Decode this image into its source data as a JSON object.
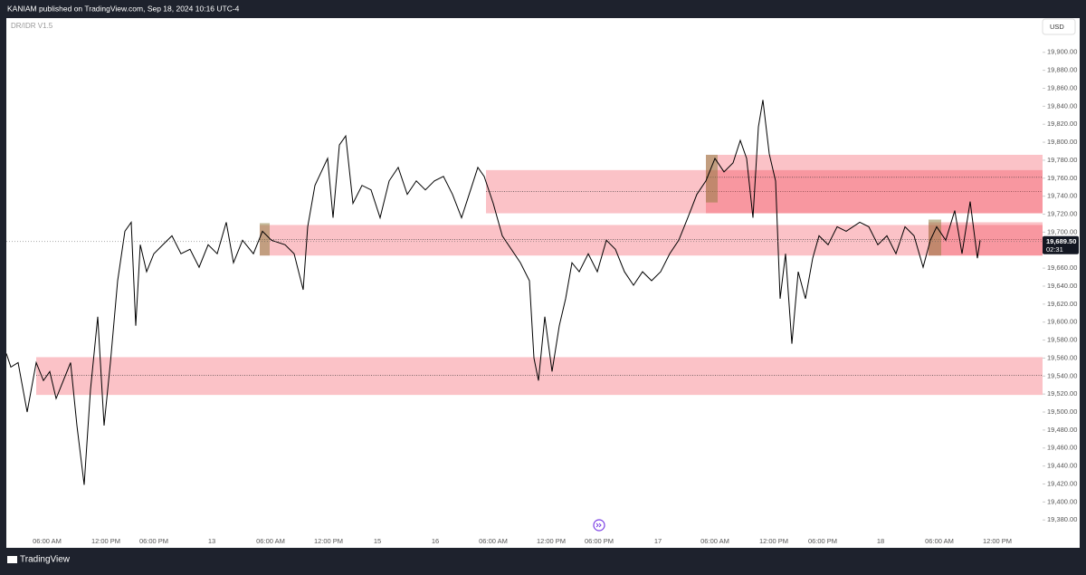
{
  "header": "KANIAM published on TradingView.com, Sep 18, 2024 10:16 UTC-4",
  "indicator": "DR/IDR V1.5",
  "currency": "USD",
  "footer": "TradingView",
  "chart_data": {
    "type": "line",
    "color": "#000000",
    "x": [
      0,
      5,
      13,
      23,
      33,
      41,
      48,
      55,
      63,
      71,
      78,
      86,
      93,
      101,
      108,
      115,
      123,
      131,
      138,
      143,
      148,
      155,
      163,
      173,
      183,
      193,
      203,
      213,
      223,
      233,
      243,
      251,
      261,
      273,
      283,
      293,
      308,
      318,
      328,
      333,
      341,
      348,
      355,
      361,
      368,
      375,
      383,
      393,
      403,
      413,
      423,
      433,
      443,
      453,
      463,
      473,
      483,
      493,
      503,
      513,
      521,
      528,
      538,
      548,
      558,
      568,
      578,
      583,
      588,
      595,
      603,
      611,
      618,
      625,
      633,
      643,
      653,
      663,
      673,
      683,
      693,
      703,
      713,
      723,
      733,
      743,
      753,
      763,
      773,
      783,
      793,
      803,
      811,
      818,
      825,
      831,
      836,
      843,
      850,
      855,
      861,
      868,
      875,
      883,
      891,
      898,
      908,
      918,
      928,
      943,
      953,
      963,
      973,
      983,
      993,
      1003,
      1013,
      1021,
      1028,
      1038,
      1048,
      1056,
      1065,
      1073,
      1076
    ],
    "values": [
      19565,
      19550,
      19555,
      19500,
      19555,
      19535,
      19545,
      19515,
      19535,
      19555,
      19485,
      19419,
      19525,
      19606,
      19485,
      19555,
      19646,
      19701,
      19711,
      19596,
      19686,
      19656,
      19676,
      19686,
      19696,
      19676,
      19681,
      19661,
      19686,
      19676,
      19711,
      19666,
      19691,
      19676,
      19701,
      19691,
      19686,
      19676,
      19636,
      19706,
      19752,
      19767,
      19782,
      19716,
      19797,
      19807,
      19732,
      19752,
      19747,
      19716,
      19757,
      19772,
      19742,
      19757,
      19747,
      19757,
      19762,
      19742,
      19716,
      19747,
      19772,
      19762,
      19732,
      19696,
      19681,
      19666,
      19646,
      19560,
      19535,
      19606,
      19545,
      19596,
      19626,
      19666,
      19656,
      19676,
      19656,
      19691,
      19681,
      19656,
      19641,
      19656,
      19646,
      19656,
      19676,
      19691,
      19716,
      19742,
      19757,
      19782,
      19767,
      19777,
      19802,
      19782,
      19716,
      19817,
      19847,
      19787,
      19757,
      19626,
      19676,
      19576,
      19656,
      19626,
      19671,
      19696,
      19686,
      19706,
      19701,
      19711,
      19706,
      19686,
      19696,
      19676,
      19706,
      19696,
      19661,
      19691,
      19706,
      19691,
      19724,
      19676,
      19734,
      19671,
      19691
    ],
    "xlim": [
      0,
      1145
    ],
    "xticks": [
      {
        "value": 45,
        "label": "06:00 AM"
      },
      {
        "value": 110,
        "label": "12:00 PM"
      },
      {
        "value": 163,
        "label": "06:00 PM"
      },
      {
        "value": 227,
        "label": "13"
      },
      {
        "value": 292,
        "label": "06:00 AM"
      },
      {
        "value": 356,
        "label": "12:00 PM"
      },
      {
        "value": 410,
        "label": "15"
      },
      {
        "value": 474,
        "label": "16"
      },
      {
        "value": 538,
        "label": "06:00 AM"
      },
      {
        "value": 602,
        "label": "12:00 PM"
      },
      {
        "value": 655,
        "label": "06:00 PM"
      },
      {
        "value": 720,
        "label": "17"
      },
      {
        "value": 783,
        "label": "06:00 AM"
      },
      {
        "value": 848,
        "label": "12:00 PM"
      },
      {
        "value": 902,
        "label": "06:00 PM"
      },
      {
        "value": 966,
        "label": "18"
      },
      {
        "value": 1031,
        "label": "06:00 AM"
      },
      {
        "value": 1095,
        "label": "12:00 PM"
      }
    ],
    "ylim": [
      19349,
      19938
    ],
    "yticks": [
      {
        "value": 19380,
        "label": "19,380.00"
      },
      {
        "value": 19400,
        "label": "19,400.00"
      },
      {
        "value": 19420,
        "label": "19,420.00"
      },
      {
        "value": 19440,
        "label": "19,440.00"
      },
      {
        "value": 19460,
        "label": "19,460.00"
      },
      {
        "value": 19480,
        "label": "19,480.00"
      },
      {
        "value": 19500,
        "label": "19,500.00"
      },
      {
        "value": 19520,
        "label": "19,520.00"
      },
      {
        "value": 19540,
        "label": "19,540.00"
      },
      {
        "value": 19560,
        "label": "19,560.00"
      },
      {
        "value": 19580,
        "label": "19,580.00"
      },
      {
        "value": 19600,
        "label": "19,600.00"
      },
      {
        "value": 19620,
        "label": "19,620.00"
      },
      {
        "value": 19640,
        "label": "19,640.00"
      },
      {
        "value": 19660,
        "label": "19,660.00"
      },
      {
        "value": 19680,
        "label": "19,680.00"
      },
      {
        "value": 19700,
        "label": "19,700.00"
      },
      {
        "value": 19720,
        "label": "19,720.00"
      },
      {
        "value": 19740,
        "label": "19,740.00"
      },
      {
        "value": 19760,
        "label": "19,760.00"
      },
      {
        "value": 19780,
        "label": "19,780.00"
      },
      {
        "value": 19800,
        "label": "19,800.00"
      },
      {
        "value": 19820,
        "label": "19,820.00"
      },
      {
        "value": 19840,
        "label": "19,840.00"
      },
      {
        "value": 19860,
        "label": "19,860.00"
      },
      {
        "value": 19880,
        "label": "19,880.00"
      },
      {
        "value": 19900,
        "label": "19,900.00"
      }
    ],
    "zones": [
      {
        "x": [
          33,
          1145
        ],
        "y": [
          19519,
          19561
        ],
        "mid": 19541,
        "color": "#f23645"
      },
      {
        "x": [
          280,
          1145
        ],
        "y": [
          19674,
          19708
        ],
        "mid": 19692,
        "color": "#f23645"
      },
      {
        "x": [
          530,
          1145
        ],
        "y": [
          19721,
          19769
        ],
        "mid": 19745,
        "color": "#f23645"
      },
      {
        "x": [
          773,
          1145
        ],
        "y": [
          19721,
          19786
        ],
        "mid": 19761,
        "color": "#f23645"
      },
      {
        "x": [
          1019,
          1145
        ],
        "y": [
          19674,
          19711
        ],
        "color": "#f23645"
      },
      {
        "x": [
          280,
          291
        ],
        "y": [
          19674,
          19710
        ],
        "color": "#8a7a3a"
      },
      {
        "x": [
          773,
          786
        ],
        "y": [
          19733,
          19786
        ],
        "color": "#8a7a3a"
      },
      {
        "x": [
          1019,
          1033
        ],
        "y": [
          19674,
          19714
        ],
        "color": "#8a7a3a"
      }
    ],
    "last_price": {
      "value": 19689.5,
      "label": "19,689.50"
    },
    "countdown": "02:31"
  }
}
